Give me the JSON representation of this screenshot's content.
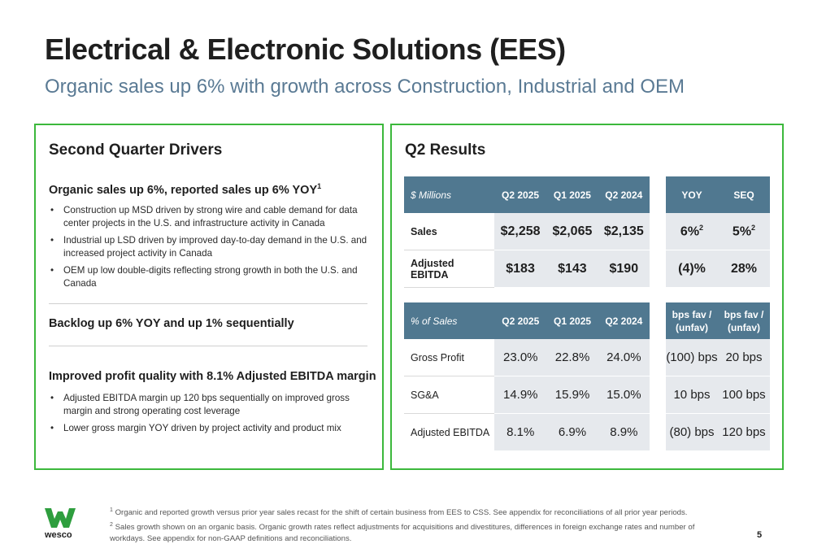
{
  "header": {
    "title": "Electrical & Electronic Solutions (EES)",
    "subtitle": "Organic sales up 6% with growth across Construction, Industrial and OEM"
  },
  "drivers": {
    "heading": "Second Quarter Drivers",
    "section1": {
      "heading": "Organic sales up 6%, reported sales up 6% YOY",
      "footnote_mark": "1",
      "bullets": [
        "Construction up MSD driven by strong wire and cable demand for data center projects in the U.S. and infrastructure activity in Canada",
        "Industrial up LSD driven by improved day-to-day demand in the U.S. and increased project activity in Canada",
        "OEM up low double-digits reflecting strong growth in both the U.S. and Canada"
      ]
    },
    "section2": {
      "heading": "Backlog up 6% YOY and up 1% sequentially"
    },
    "section3": {
      "heading": "Improved profit quality with 8.1% Adjusted EBITDA margin",
      "bullets": [
        "Adjusted EBITDA margin up 120 bps sequentially on improved gross margin and strong operating cost leverage",
        "Lower gross margin YOY driven by project activity and product mix"
      ]
    }
  },
  "results": {
    "heading": "Q2 Results",
    "table1": {
      "label": "$ Millions",
      "cols": [
        "Q2 2025",
        "Q1 2025",
        "Q2 2024"
      ],
      "rows": [
        {
          "label": "Sales",
          "values": [
            "$2,258",
            "$2,065",
            "$2,135"
          ]
        },
        {
          "label": "Adjusted EBITDA",
          "values": [
            "$183",
            "$143",
            "$190"
          ]
        }
      ]
    },
    "table2": {
      "cols": [
        "YOY",
        "SEQ"
      ],
      "rows": [
        {
          "values": [
            "6%",
            "5%"
          ],
          "sups": [
            "2",
            "2"
          ]
        },
        {
          "values": [
            "(4)%",
            "28%"
          ]
        }
      ]
    },
    "table3": {
      "label": "% of Sales",
      "cols": [
        "Q2 2025",
        "Q1 2025",
        "Q2 2024"
      ],
      "rows": [
        {
          "label": "Gross Profit",
          "values": [
            "23.0%",
            "22.8%",
            "24.0%"
          ]
        },
        {
          "label": "SG&A",
          "values": [
            "14.9%",
            "15.9%",
            "15.0%"
          ]
        },
        {
          "label": "Adjusted EBITDA",
          "values": [
            "8.1%",
            "6.9%",
            "8.9%"
          ]
        }
      ]
    },
    "table4": {
      "cols": [
        {
          "line1": "bps fav /",
          "line2": "(unfav)"
        },
        {
          "line1": "bps fav /",
          "line2": "(unfav)"
        }
      ],
      "rows": [
        {
          "values": [
            "(100) bps",
            "20 bps"
          ]
        },
        {
          "values": [
            "10 bps",
            "100 bps"
          ]
        },
        {
          "values": [
            "(80) bps",
            "120 bps"
          ]
        }
      ]
    }
  },
  "footer": {
    "logo_text": "wesco",
    "logo_color": "#2e9e3e",
    "footnote1_mark": "1",
    "footnote1": "Organic and reported growth versus prior year sales recast for the shift of certain business from EES to CSS. See appendix for reconciliations of all prior year periods.",
    "footnote2_mark": "2",
    "footnote2": "Sales growth shown on an organic basis.  Organic growth rates reflect adjustments for acquisitions and divestitures, differences in foreign exchange rates and number of workdays. See appendix for non-GAAP definitions and reconciliations.",
    "page_number": "5"
  },
  "colors": {
    "accent_border": "#3cb83c",
    "table_header": "#507890",
    "subtitle": "#5a7a94",
    "cell_fill": "#e6e9ed"
  }
}
